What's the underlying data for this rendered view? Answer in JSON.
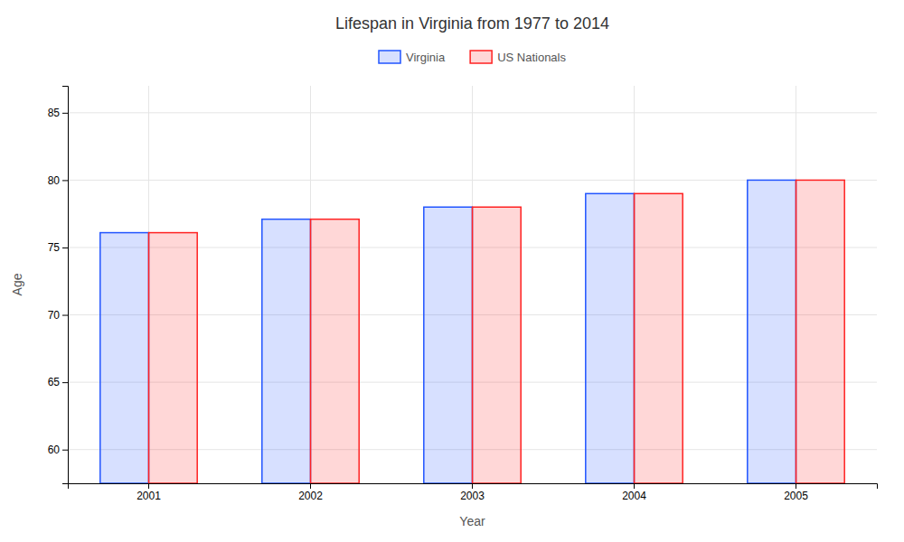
{
  "chart_data": {
    "type": "bar",
    "title": "Lifespan in Virginia from 1977 to 2014",
    "x_label": "Year",
    "y_label": "Age",
    "categories": [
      "2001",
      "2002",
      "2003",
      "2004",
      "2005"
    ],
    "series": [
      {
        "name": "Virginia",
        "color": "#2255ff",
        "values": [
          76.1,
          77.1,
          78.0,
          79.0,
          80.0
        ]
      },
      {
        "name": "US Nationals",
        "color": "#ff2222",
        "values": [
          76.1,
          77.1,
          78.0,
          79.0,
          80.0
        ]
      }
    ],
    "ylim": [
      57.5,
      87
    ],
    "yticks": [
      60,
      65,
      70,
      75,
      80,
      85
    ],
    "grid": true,
    "legend": "top"
  }
}
